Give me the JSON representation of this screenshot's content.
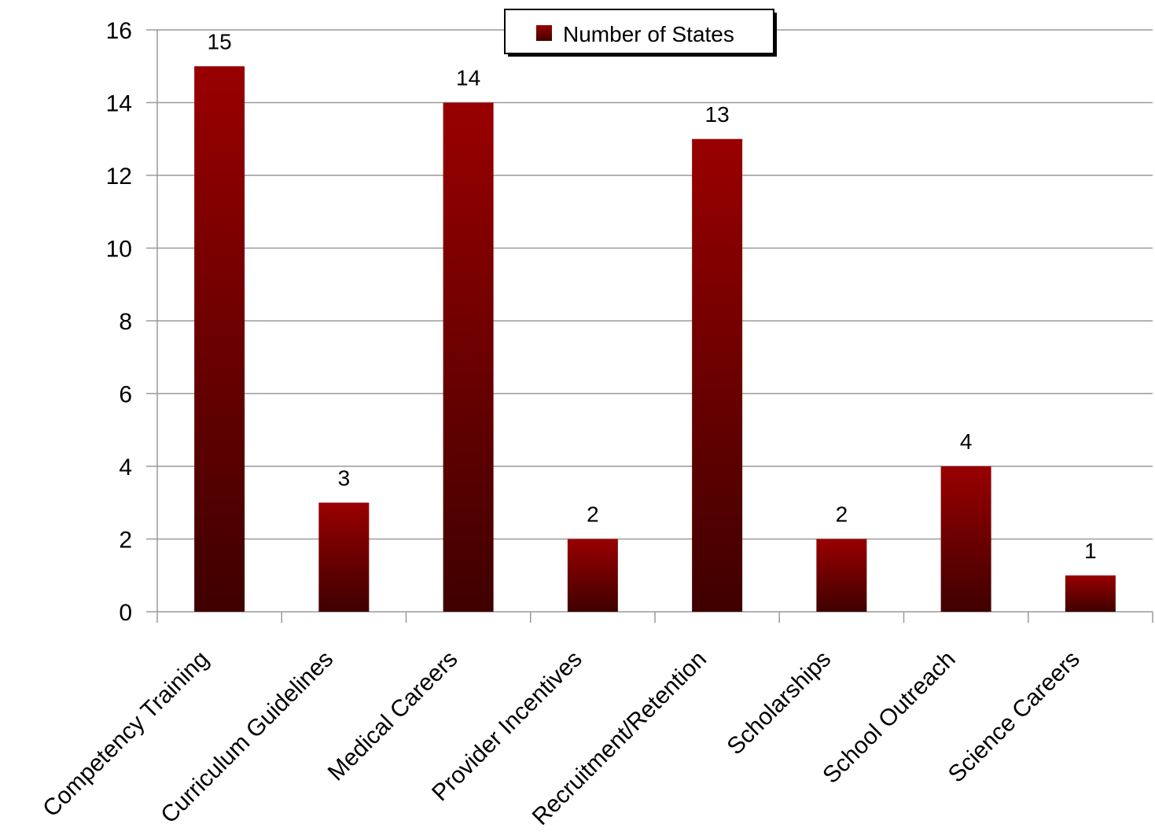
{
  "chart_data": {
    "type": "bar",
    "categories": [
      "Competency Training",
      "Curriculum Guidelines",
      "Medical Careers",
      "Provider Incentives",
      "Recruitment/Retention",
      "Scholarships",
      "School Outreach",
      "Science Careers"
    ],
    "series": [
      {
        "name": "Number of States",
        "values": [
          15,
          3,
          14,
          2,
          13,
          2,
          4,
          1
        ]
      }
    ],
    "yticks": [
      0,
      2,
      4,
      6,
      8,
      10,
      12,
      14,
      16
    ],
    "ylim": [
      0,
      16
    ],
    "grid": true,
    "legend_position": "top-center",
    "data_labels": true,
    "colors": {
      "bar_top": "#990000",
      "bar_bottom": "#3f0000",
      "grid": "#9a9a9a"
    }
  }
}
